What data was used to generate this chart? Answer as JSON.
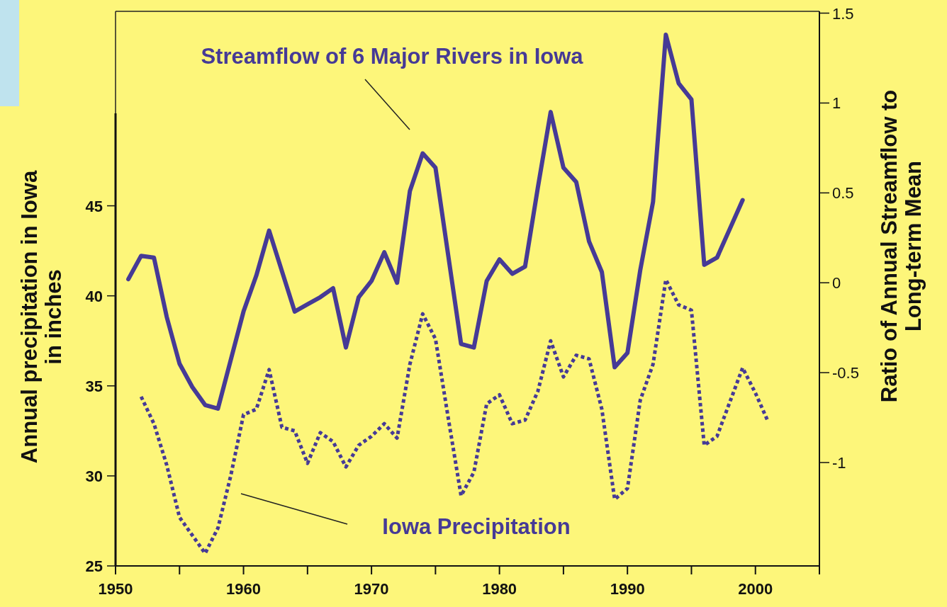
{
  "chart_data": {
    "type": "line",
    "xlabel": null,
    "ylabel": "Annual precipitation in Iowa\nin inches",
    "y2label": "Ratio of Annual Streamflow to\nLong-term Mean",
    "xlim": [
      1950,
      2005
    ],
    "xticks": [
      1950,
      {
        "value": 1955,
        "label": null
      },
      1960,
      {
        "value": 1965,
        "label": null
      },
      1970,
      {
        "value": 1975,
        "label": null
      },
      1980,
      {
        "value": 1985,
        "label": null
      },
      1990,
      {
        "value": 1995,
        "label": null
      },
      2000,
      {
        "value": 2005,
        "label": null
      }
    ],
    "ylim": [
      25,
      55.8
    ],
    "yticks": [
      25,
      30,
      35,
      40,
      45
    ],
    "y2lim": [
      -1.575,
      1.51
    ],
    "y2ticks": [
      -1,
      -0.5,
      0,
      0.5,
      1,
      1.5
    ],
    "grid": false,
    "marker": "none",
    "series": [
      {
        "name": "Streamflow of 6 Major Rivers in Iowa",
        "color": "#463a96",
        "axis": "y2",
        "line_style": "solid",
        "x": [
          1951,
          1952,
          1953,
          1954,
          1955,
          1956,
          1957,
          1958,
          1960,
          1961,
          1962,
          1964,
          1965,
          1966,
          1967,
          1968,
          1969,
          1970,
          1971,
          1972,
          1973,
          1974,
          1975,
          1976,
          1977,
          1978,
          1979,
          1980,
          1981,
          1982,
          1983,
          1984,
          1985,
          1986,
          1987,
          1988,
          1989,
          1990,
          1991,
          1992,
          1993,
          1994,
          1995,
          1996,
          1997,
          1998,
          1999
        ],
        "values": [
          0.02,
          0.15,
          0.14,
          -0.19,
          -0.45,
          -0.58,
          -0.68,
          -0.7,
          -0.16,
          0.04,
          0.29,
          -0.16,
          -0.12,
          -0.08,
          -0.03,
          -0.36,
          -0.08,
          0.01,
          0.17,
          0.0,
          0.51,
          0.72,
          0.64,
          0.15,
          -0.34,
          -0.36,
          0.01,
          0.13,
          0.05,
          0.09,
          0.53,
          0.95,
          0.64,
          0.56,
          0.23,
          0.06,
          -0.47,
          -0.39,
          0.07,
          0.45,
          1.38,
          1.11,
          1.02,
          0.1,
          0.14,
          0.3,
          0.46
        ]
      },
      {
        "name": "Iowa Precipitation",
        "color": "#463a96",
        "line_style": "dotted",
        "x": [
          1952,
          1953,
          1954,
          1955,
          1956,
          1957,
          1958,
          1959,
          1960,
          1961,
          1962,
          1963,
          1964,
          1965,
          1966,
          1967,
          1968,
          1969,
          1970,
          1971,
          1972,
          1973,
          1974,
          1975,
          1976,
          1977,
          1978,
          1979,
          1980,
          1981,
          1982,
          1983,
          1984,
          1985,
          1986,
          1987,
          1988,
          1989,
          1990,
          1991,
          1992,
          1993,
          1994,
          1995,
          1996,
          1997,
          1998,
          1999,
          2000,
          2001
        ],
        "values": [
          34.4,
          32.9,
          30.6,
          27.7,
          26.7,
          25.7,
          27.1,
          30.0,
          33.4,
          33.7,
          35.9,
          32.7,
          32.5,
          30.7,
          32.4,
          31.9,
          30.5,
          31.7,
          32.2,
          32.9,
          32.1,
          36.2,
          39.0,
          37.6,
          33.2,
          28.9,
          30.2,
          34.0,
          34.5,
          32.9,
          33.1,
          34.7,
          37.5,
          35.5,
          36.7,
          36.5,
          33.7,
          28.7,
          29.3,
          34.2,
          36.2,
          40.9,
          39.5,
          39.2,
          31.7,
          32.2,
          34.1,
          36.0,
          34.6,
          33.0
        ]
      }
    ]
  }
}
